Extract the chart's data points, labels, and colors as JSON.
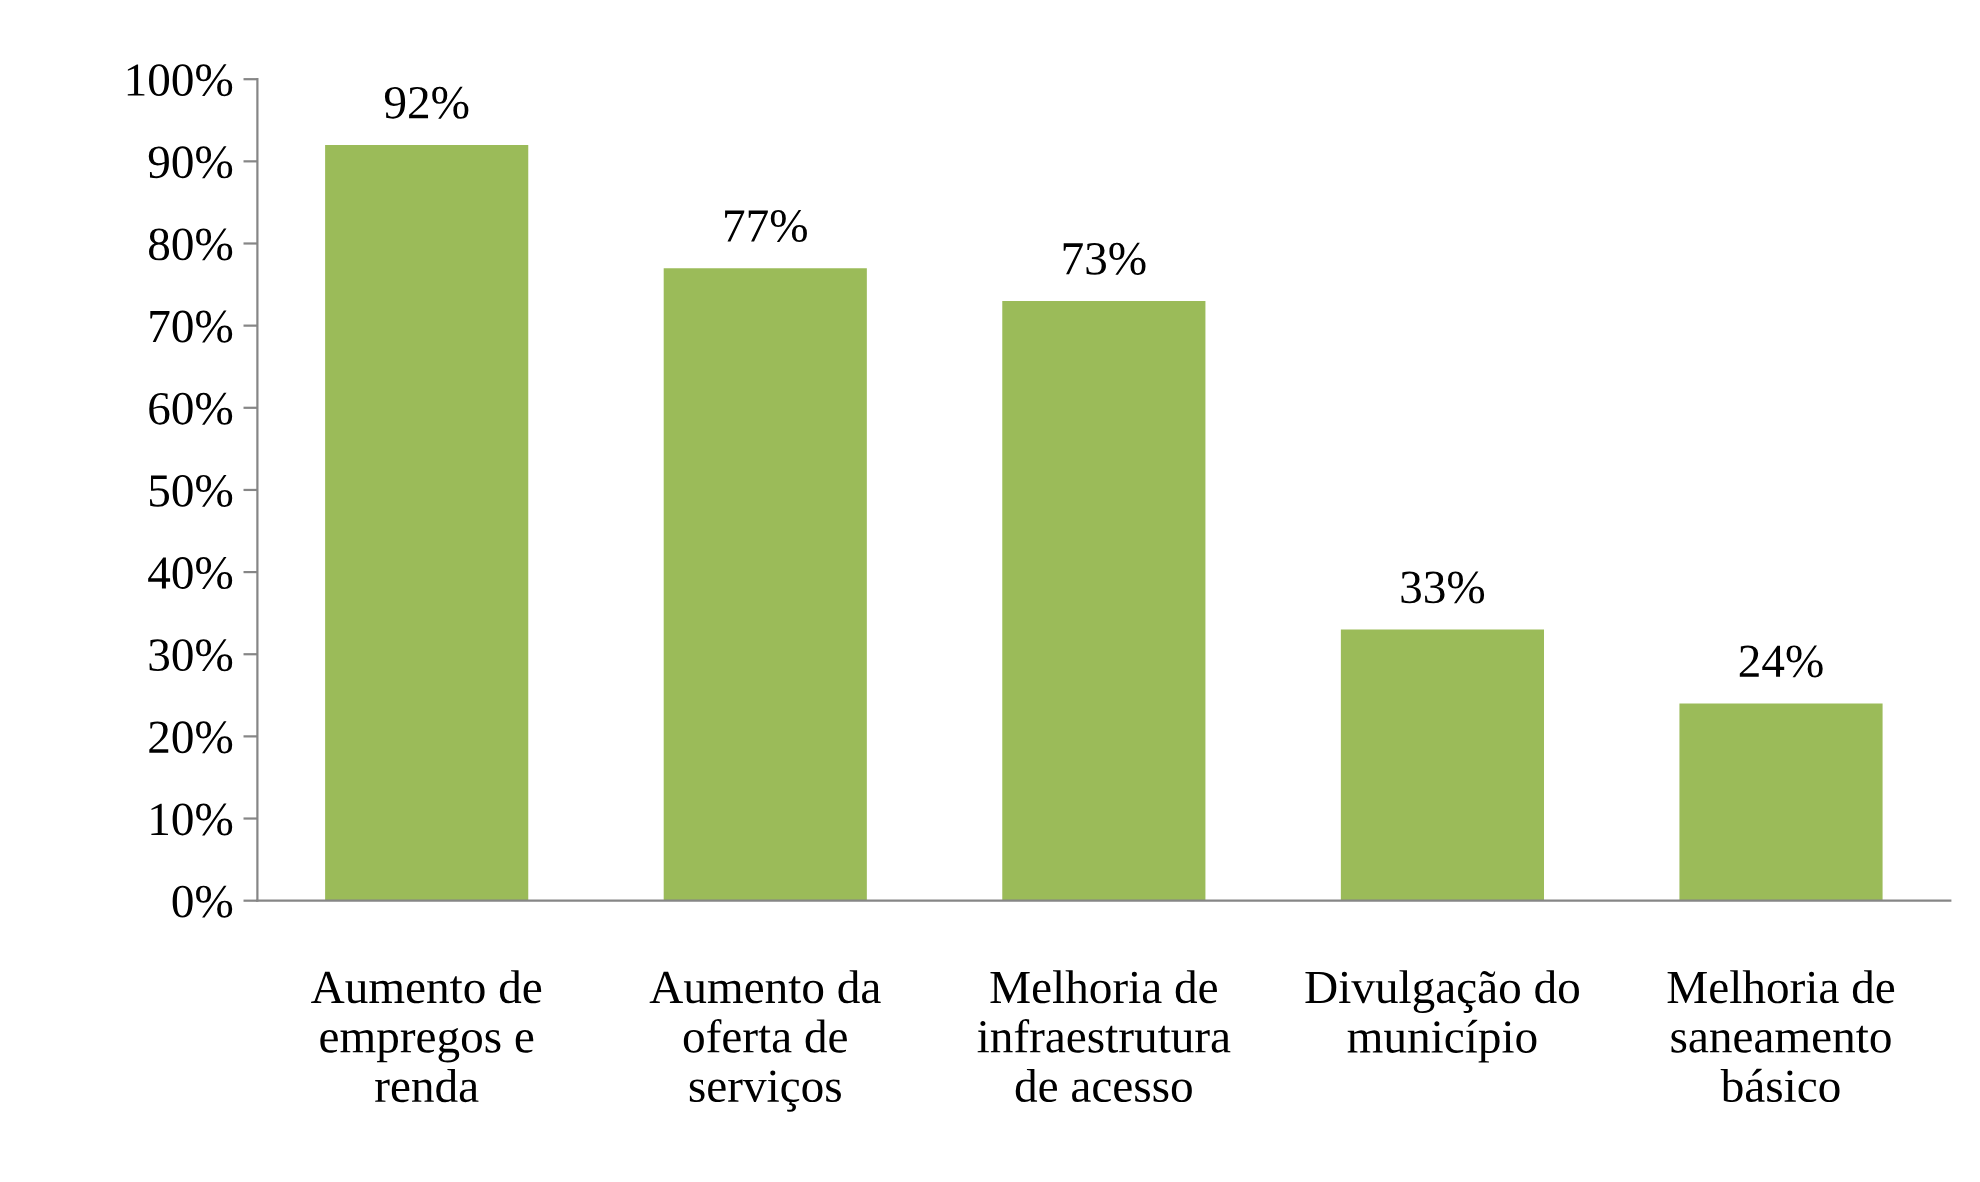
{
  "chart_data": {
    "type": "bar",
    "categories": [
      "Aumento de\nempregos e\nrenda",
      "Aumento da\noferta de\nserviços",
      "Melhoria de\ninfraestrutura\nde acesso",
      "Divulgação do\nmunicípio",
      "Melhoria de\nsaneamento\nbásico"
    ],
    "values": [
      92,
      77,
      73,
      33,
      24
    ],
    "value_labels": [
      "92%",
      "77%",
      "73%",
      "33%",
      "24%"
    ],
    "color": "#9bbb59",
    "ylim": [
      0,
      100
    ],
    "yticks": [
      {
        "value": 0,
        "label": "0%"
      },
      {
        "value": 10,
        "label": "10%"
      },
      {
        "value": 20,
        "label": "20%"
      },
      {
        "value": 30,
        "label": "30%"
      },
      {
        "value": 40,
        "label": "40%"
      },
      {
        "value": 50,
        "label": "50%"
      },
      {
        "value": 60,
        "label": "60%"
      },
      {
        "value": 70,
        "label": "70%"
      },
      {
        "value": 80,
        "label": "80%"
      },
      {
        "value": 90,
        "label": "90%"
      },
      {
        "value": 100,
        "label": "100%"
      }
    ],
    "grid": false,
    "legend": false
  }
}
